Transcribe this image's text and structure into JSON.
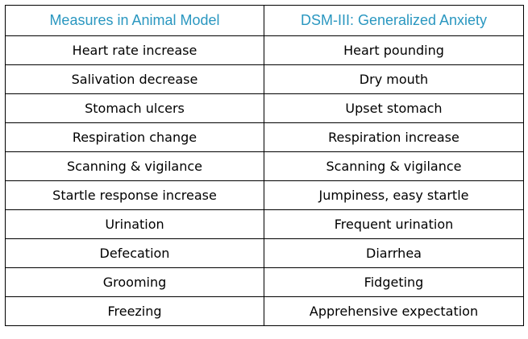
{
  "table": {
    "headers": [
      "Measures in Animal Model",
      "DSM-III: Generalized Anxiety"
    ],
    "header_color": "#2a97c0",
    "rows": [
      [
        "Heart rate increase",
        "Heart pounding"
      ],
      [
        "Salivation decrease",
        "Dry mouth"
      ],
      [
        "Stomach ulcers",
        "Upset stomach"
      ],
      [
        "Respiration change",
        "Respiration increase"
      ],
      [
        "Scanning & vigilance",
        "Scanning & vigilance"
      ],
      [
        "Startle response increase",
        "Jumpiness, easy startle"
      ],
      [
        "Urination",
        "Frequent urination"
      ],
      [
        "Defecation",
        "Diarrhea"
      ],
      [
        "Grooming",
        "Fidgeting"
      ],
      [
        "Freezing",
        "Apprehensive expectation"
      ]
    ]
  }
}
